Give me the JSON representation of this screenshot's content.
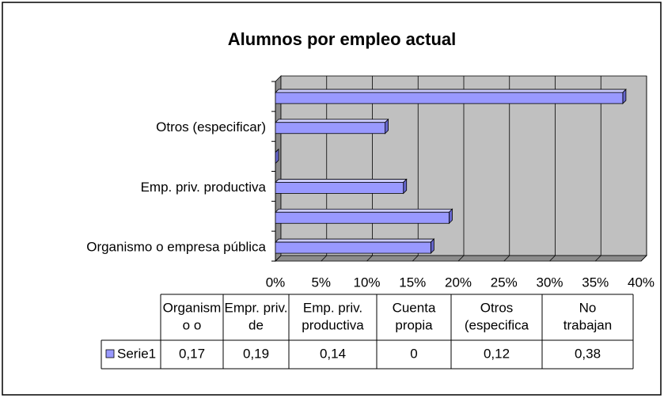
{
  "chart_data": {
    "type": "bar",
    "orientation": "horizontal",
    "title": "Alumnos por empleo actual",
    "categories": [
      "Organismo o empresa pública",
      null,
      "Emp. priv.  productiva",
      null,
      "Otros (especificar)",
      null
    ],
    "series": [
      {
        "name": "Serie1",
        "color": "#9999ff",
        "values": [
          0.17,
          0.19,
          0.14,
          0,
          0.12,
          0.38
        ],
        "value_labels": [
          "0,17",
          "0,19",
          "0,14",
          "0",
          "0,12",
          "0,38"
        ]
      }
    ],
    "xlim": [
      0,
      0.4
    ],
    "xticks": [
      {
        "value": 0,
        "label": "0%"
      },
      {
        "value": 0.05,
        "label": "5%"
      },
      {
        "value": 0.1,
        "label": "10%"
      },
      {
        "value": 0.15,
        "label": "15%"
      },
      {
        "value": 0.2,
        "label": "20%"
      },
      {
        "value": 0.25,
        "label": "25%"
      },
      {
        "value": 0.3,
        "label": "30%"
      },
      {
        "value": 0.35,
        "label": "35%"
      },
      {
        "value": 0.4,
        "label": "40%"
      }
    ],
    "grid": true,
    "data_table": {
      "headers": [
        [
          "Organism",
          "o o"
        ],
        [
          "Empr. priv.",
          "de"
        ],
        [
          "Emp. priv.",
          "productiva"
        ],
        [
          "Cuenta",
          "propia"
        ],
        [
          "Otros",
          "(especifica"
        ],
        [
          "No",
          "trabajan"
        ]
      ]
    }
  }
}
